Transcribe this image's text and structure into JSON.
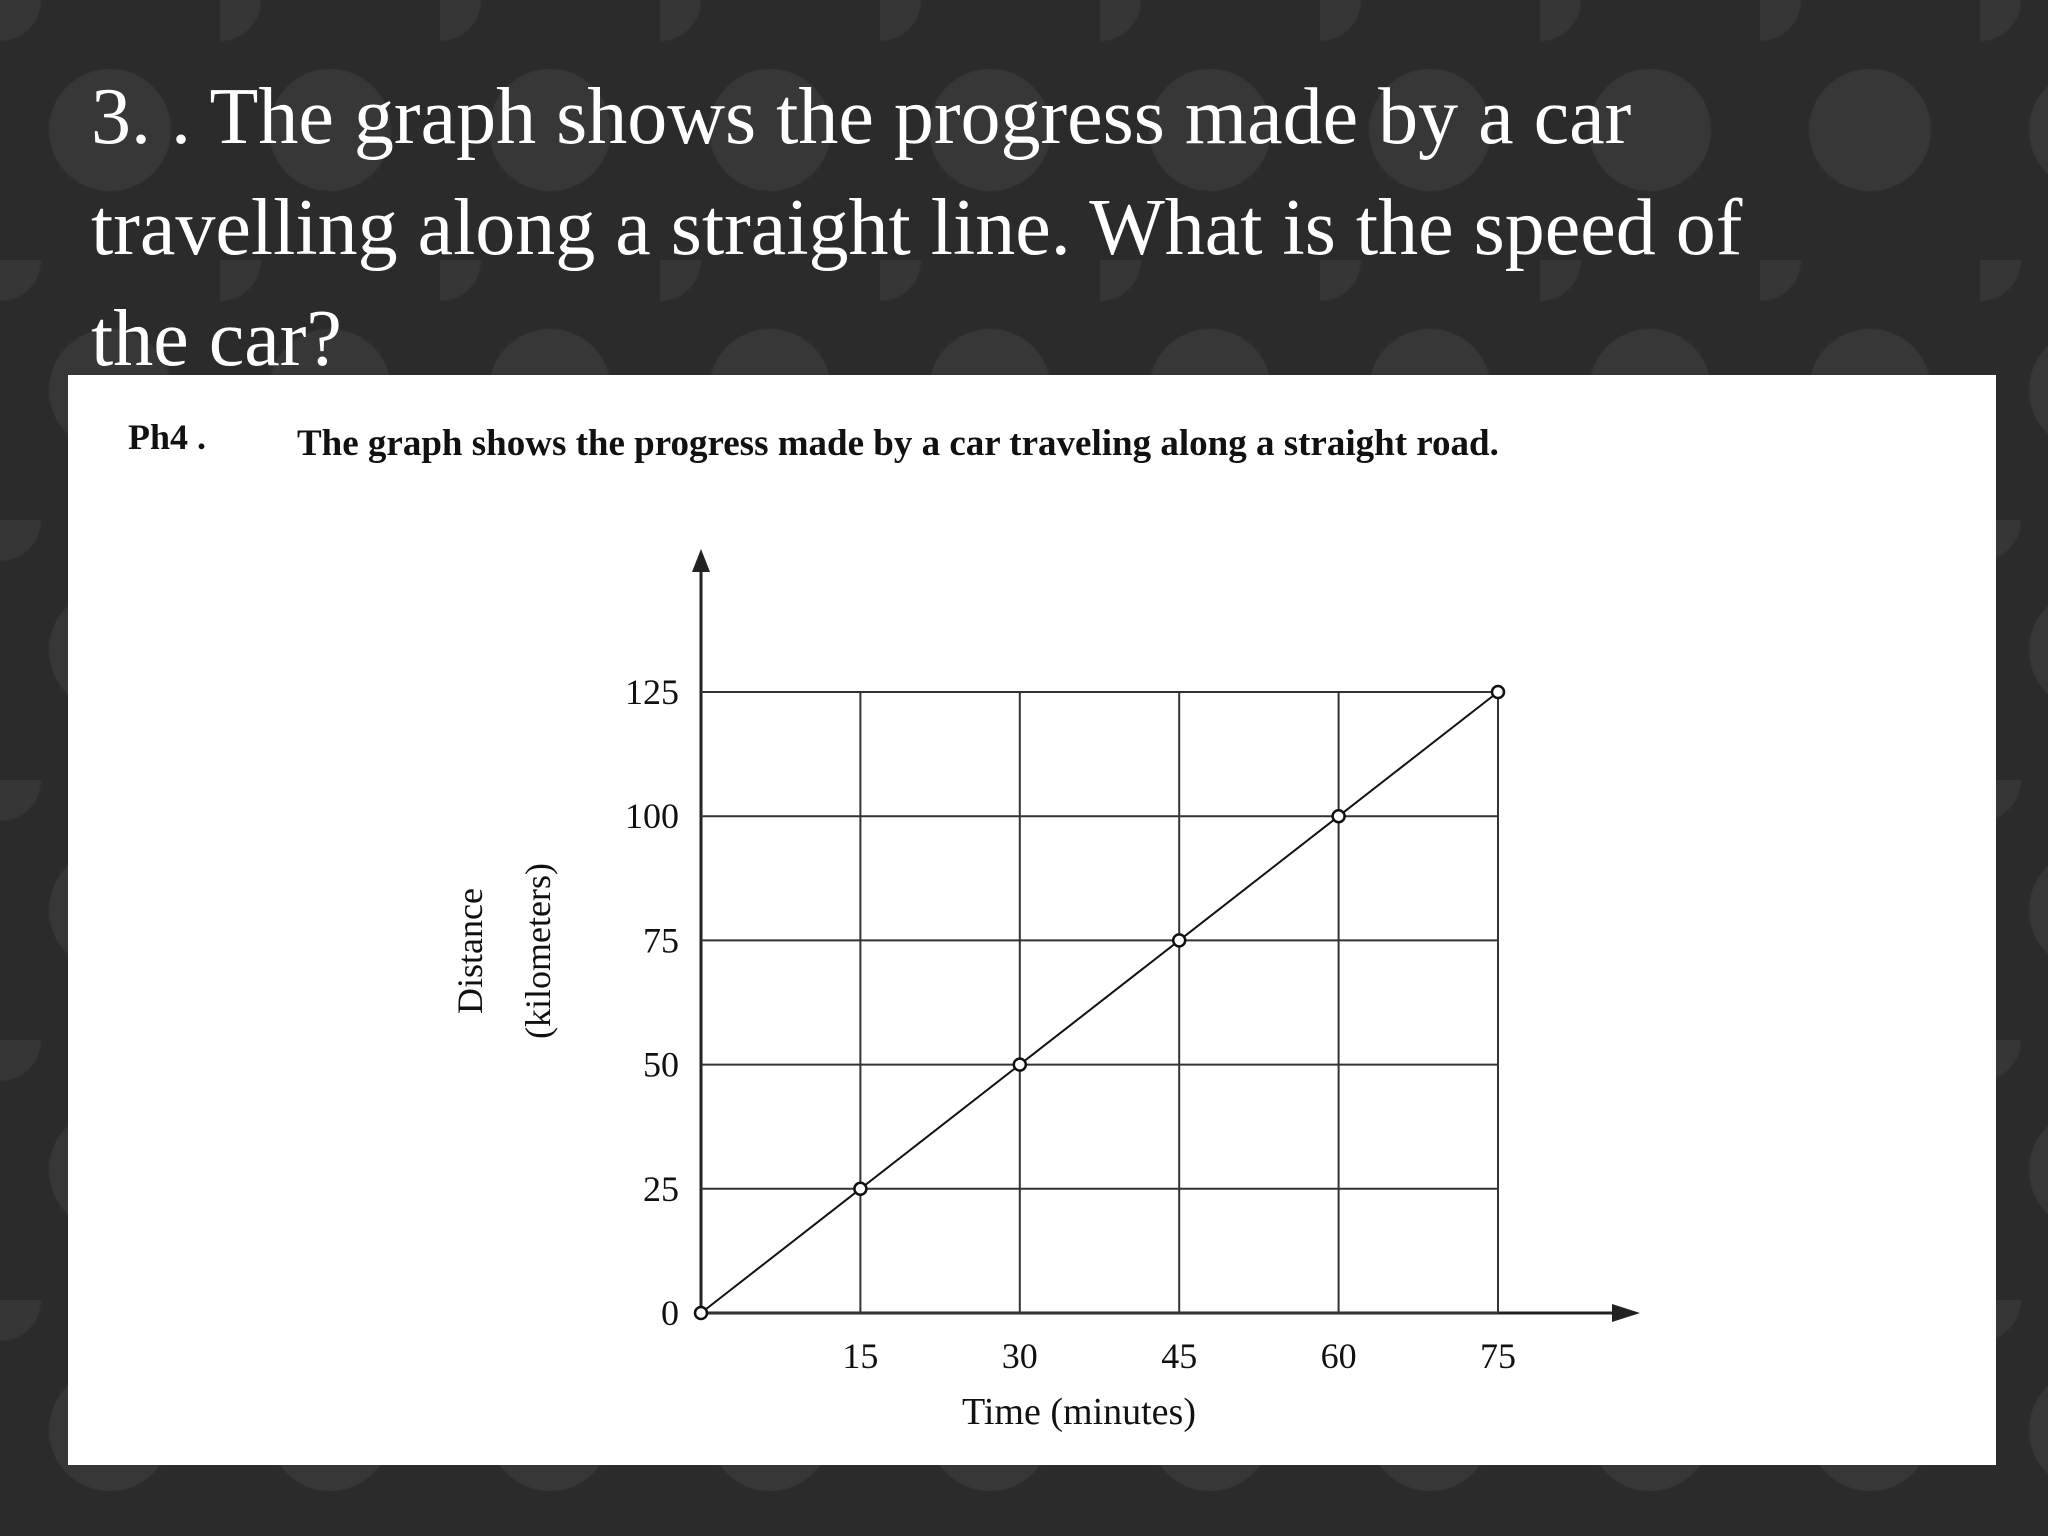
{
  "slide": {
    "title_lines": [
      "3. . The graph shows the progress made by a car",
      "travelling along a straight line. What is the speed of",
      "the car?"
    ]
  },
  "chart_data": {
    "type": "line",
    "label": "Ph4 .",
    "title": "The graph shows the progress made by a car traveling along a straight road.",
    "x_label": "Time (minutes)",
    "y_label_lines": [
      "Distance",
      "(kilometers)"
    ],
    "x": [
      0,
      15,
      30,
      45,
      60,
      75
    ],
    "series": [
      {
        "name": "Distance",
        "color": "#111111",
        "values": [
          0,
          25,
          50,
          75,
          100,
          125
        ]
      }
    ],
    "xlim": [
      0,
      75
    ],
    "xticks": [
      15,
      30,
      45,
      60,
      75
    ],
    "ylim": [
      0,
      125
    ],
    "yticks": [
      0,
      25,
      50,
      75,
      100,
      125
    ],
    "grid": true
  }
}
